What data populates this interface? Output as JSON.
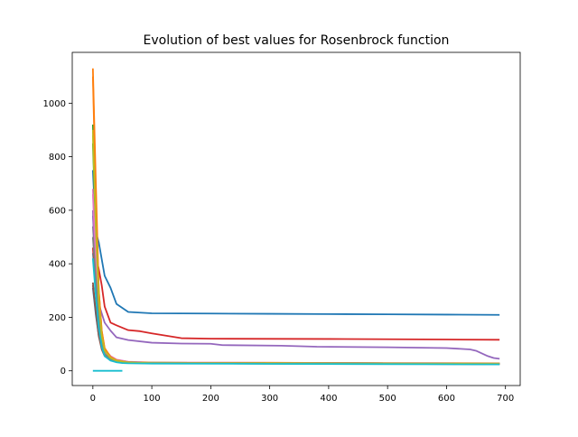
{
  "chart_data": {
    "type": "line",
    "title": "Evolution of best values for Rosenbrock function",
    "xlabel": "",
    "ylabel": "",
    "xlim": [
      -35,
      725
    ],
    "ylim": [
      -55,
      1190
    ],
    "xticks": [
      0,
      100,
      200,
      300,
      400,
      500,
      600,
      700
    ],
    "yticks": [
      0,
      200,
      400,
      600,
      800,
      1000
    ],
    "grid": false,
    "legend": "none",
    "series": [
      {
        "color": "#1f77b4",
        "x": [
          0,
          5,
          10,
          20,
          30,
          40,
          60,
          100,
          200,
          300,
          400,
          500,
          600,
          690
        ],
        "y": [
          750,
          520,
          480,
          355,
          310,
          250,
          220,
          215,
          214,
          213,
          212,
          211,
          210,
          209
        ]
      },
      {
        "color": "#ff7f0e",
        "x": [
          0,
          5,
          10,
          15,
          20,
          30,
          40,
          60,
          100,
          300,
          500,
          690
        ],
        "y": [
          1130,
          700,
          300,
          150,
          80,
          50,
          40,
          32,
          30,
          30,
          29,
          28
        ]
      },
      {
        "color": "#2ca02c",
        "x": [
          0,
          5,
          10,
          15,
          20,
          30,
          40,
          60,
          100,
          300,
          500,
          690
        ],
        "y": [
          920,
          600,
          260,
          130,
          70,
          45,
          36,
          31,
          30,
          29,
          28,
          27
        ]
      },
      {
        "color": "#d62728",
        "x": [
          0,
          5,
          10,
          15,
          20,
          30,
          40,
          60,
          80,
          100,
          150,
          200,
          400,
          600,
          690
        ],
        "y": [
          500,
          430,
          380,
          320,
          240,
          180,
          170,
          152,
          148,
          140,
          122,
          120,
          119,
          117,
          116
        ]
      },
      {
        "color": "#9467bd",
        "x": [
          0,
          5,
          10,
          20,
          30,
          40,
          60,
          100,
          150,
          200,
          220,
          320,
          380,
          500,
          600,
          640,
          650,
          660,
          670,
          680,
          690
        ],
        "y": [
          600,
          360,
          250,
          180,
          150,
          125,
          115,
          105,
          102,
          101,
          96,
          94,
          90,
          88,
          85,
          80,
          75,
          65,
          55,
          48,
          45
        ]
      },
      {
        "color": "#8c564b",
        "x": [
          0,
          5,
          10,
          15,
          20,
          30,
          40,
          60,
          100,
          300,
          500,
          690
        ],
        "y": [
          330,
          220,
          140,
          90,
          65,
          45,
          37,
          32,
          30,
          29,
          28,
          27
        ]
      },
      {
        "color": "#e377c2",
        "x": [
          0,
          5,
          10,
          15,
          20,
          30,
          40,
          60,
          100,
          300,
          500,
          690
        ],
        "y": [
          680,
          430,
          240,
          130,
          80,
          55,
          42,
          34,
          31,
          30,
          28,
          27
        ]
      },
      {
        "color": "#7f7f7f",
        "x": [
          0,
          5,
          10,
          15,
          20,
          30,
          40,
          60,
          100,
          300,
          500,
          690
        ],
        "y": [
          540,
          380,
          210,
          110,
          70,
          48,
          38,
          32,
          30,
          29,
          28,
          27
        ]
      },
      {
        "color": "#bcbd22",
        "x": [
          0,
          5,
          10,
          15,
          20,
          30,
          40,
          60,
          100,
          300,
          500,
          690
        ],
        "y": [
          900,
          560,
          280,
          140,
          80,
          50,
          38,
          32,
          30,
          29,
          28,
          27
        ]
      },
      {
        "color": "#17becf",
        "x": [
          0,
          5,
          10,
          15,
          20,
          30,
          40,
          60,
          100,
          300,
          500,
          690
        ],
        "y": [
          440,
          300,
          170,
          95,
          60,
          42,
          35,
          31,
          29,
          28,
          27,
          26
        ]
      },
      {
        "color": "#1f77b4",
        "x": [
          0,
          5,
          10,
          15,
          20,
          30,
          40,
          60,
          100,
          300,
          500,
          690
        ],
        "y": [
          310,
          210,
          130,
          85,
          60,
          42,
          35,
          30,
          28,
          27,
          26,
          25
        ]
      },
      {
        "color": "#ff7f0e",
        "x": [
          0,
          5,
          10,
          15,
          20,
          30,
          40,
          60,
          100,
          300,
          500,
          690
        ],
        "y": [
          1100,
          640,
          300,
          150,
          85,
          52,
          40,
          32,
          30,
          29,
          28,
          27
        ]
      },
      {
        "color": "#2ca02c",
        "x": [
          0,
          5,
          10,
          15,
          20,
          30,
          40,
          60,
          100,
          300,
          500,
          690
        ],
        "y": [
          850,
          520,
          250,
          120,
          70,
          45,
          36,
          31,
          29,
          28,
          27,
          26
        ]
      },
      {
        "color": "#d62728",
        "x": [
          0,
          5,
          10,
          15,
          20,
          30,
          40,
          60,
          100,
          300,
          500,
          690
        ],
        "y": [
          460,
          320,
          180,
          100,
          62,
          44,
          36,
          31,
          29,
          28,
          27,
          26
        ]
      },
      {
        "color": "#9467bd",
        "x": [
          0,
          5,
          10,
          15,
          20,
          30,
          40,
          60,
          100,
          300,
          500,
          690
        ],
        "y": [
          580,
          380,
          200,
          110,
          68,
          46,
          37,
          31,
          29,
          28,
          27,
          26
        ]
      },
      {
        "color": "#8c564b",
        "x": [
          0,
          5,
          10,
          15,
          20,
          30,
          40,
          60,
          100,
          300,
          500,
          690
        ],
        "y": [
          320,
          220,
          130,
          80,
          55,
          40,
          34,
          30,
          28,
          27,
          26,
          25
        ]
      },
      {
        "color": "#e377c2",
        "x": [
          0,
          5,
          10,
          15,
          20,
          30,
          40,
          60,
          100,
          300,
          500,
          690
        ],
        "y": [
          660,
          420,
          220,
          120,
          72,
          48,
          38,
          31,
          29,
          28,
          27,
          26
        ]
      },
      {
        "color": "#7f7f7f",
        "x": [
          0,
          5,
          10,
          15,
          20,
          30,
          40,
          60,
          100,
          300,
          500,
          690
        ],
        "y": [
          500,
          340,
          190,
          100,
          63,
          44,
          36,
          31,
          29,
          28,
          27,
          26
        ]
      },
      {
        "color": "#bcbd22",
        "x": [
          0,
          5,
          10,
          15,
          20,
          30,
          40,
          60,
          100,
          300,
          500,
          690
        ],
        "y": [
          880,
          540,
          260,
          130,
          75,
          48,
          38,
          31,
          29,
          28,
          27,
          26
        ]
      },
      {
        "color": "#17becf",
        "x": [
          0,
          5,
          10,
          15,
          20,
          30,
          40,
          50,
          60,
          100,
          300,
          500,
          690
        ],
        "y": [
          420,
          280,
          160,
          90,
          55,
          38,
          32,
          29,
          28,
          27,
          26,
          25,
          24
        ]
      },
      {
        "color": "#17becf",
        "x": [
          0,
          50
        ],
        "y": [
          0,
          0
        ]
      }
    ]
  }
}
